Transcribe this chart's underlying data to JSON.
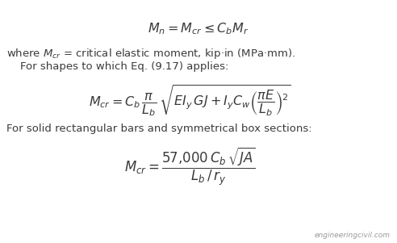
{
  "bg_color": "#ffffff",
  "text_color": "#3a3a3a",
  "watermark": "engineeringcivil.com",
  "eq1": "$M_n = M_{cr} \\leq C_b M_r$",
  "line2a": "where $M_{cr}$ = critical elastic moment, kip·in (MPa·mm).",
  "line2b": "    For shapes to which Eq. (9.17) applies:",
  "eq2": "$M_{cr} = C_b\\,\\dfrac{\\pi}{L_b}\\,\\sqrt{EI_y\\,GJ + I_y C_w \\left(\\dfrac{\\pi E}{L_b}\\right)^{\\!2}}$",
  "line3": "For solid rectangular bars and symmetrical box sections:",
  "eq3": "$M_{cr} = \\dfrac{57{,}000\\,C_b\\,\\sqrt{JA}}{L_b\\,/\\,r_y}$",
  "figsize": [
    4.92,
    3.01
  ],
  "dpi": 100
}
